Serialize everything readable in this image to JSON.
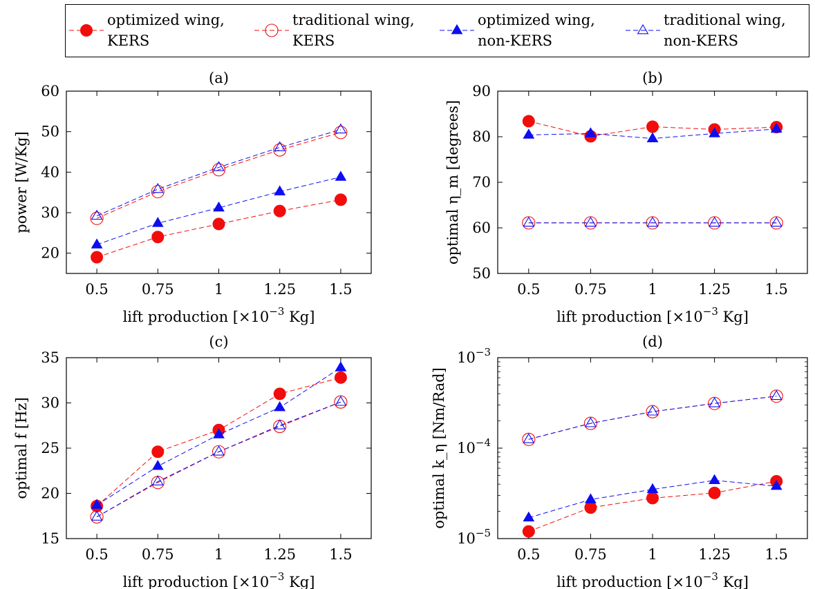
{
  "colors": {
    "red": "#f20d0d",
    "blue": "#0d0df2"
  },
  "legend": {
    "entries": [
      {
        "line1": "optimized wing,",
        "line2": "KERS",
        "color": "red",
        "marker": "filled-circle"
      },
      {
        "line1": "traditional wing,",
        "line2": "KERS",
        "color": "red",
        "marker": "open-circle"
      },
      {
        "line1": "optimized wing,",
        "line2": "non-KERS",
        "color": "blue",
        "marker": "filled-triangle"
      },
      {
        "line1": "traditional wing,",
        "line2": "non-KERS",
        "color": "blue",
        "marker": "open-triangle"
      }
    ]
  },
  "chart_data": [
    {
      "panel": "(a)",
      "type": "line",
      "ylabel": "power [W/Kg]",
      "xlabel_main": "lift production [×10",
      "xlabel_sup": "−3",
      "xlabel_end": " Kg]",
      "x": [
        0.5,
        0.75,
        1,
        1.25,
        1.5
      ],
      "xticklabels": [
        "0.5",
        "0.75",
        "1",
        "1.25",
        "1.5"
      ],
      "ylim": [
        15,
        60
      ],
      "yscale": "linear",
      "yticks": [
        20,
        30,
        40,
        50,
        60
      ],
      "yticklabels": [
        "20",
        "30",
        "40",
        "50",
        "60"
      ],
      "series": [
        {
          "name": "optimized wing, KERS",
          "values": [
            19.0,
            24.0,
            27.2,
            30.4,
            33.2
          ]
        },
        {
          "name": "traditional wing, KERS",
          "values": [
            28.6,
            35.2,
            40.6,
            45.5,
            49.8
          ]
        },
        {
          "name": "optimized wing, non-KERS",
          "values": [
            22.1,
            27.4,
            31.2,
            35.2,
            38.8
          ]
        },
        {
          "name": "traditional wing, non-KERS",
          "values": [
            29.2,
            35.8,
            41.2,
            46.1,
            50.5
          ]
        }
      ]
    },
    {
      "panel": "(b)",
      "type": "line",
      "ylabel": "optimal η_m [degrees]",
      "xlabel_main": "lift production [×10",
      "xlabel_sup": "−3",
      "xlabel_end": " Kg]",
      "x": [
        0.5,
        0.75,
        1,
        1.25,
        1.5
      ],
      "xticklabels": [
        "0.5",
        "0.75",
        "1",
        "1.25",
        "1.5"
      ],
      "ylim": [
        50,
        90
      ],
      "yscale": "linear",
      "yticks": [
        50,
        60,
        70,
        80,
        90
      ],
      "yticklabels": [
        "50",
        "60",
        "70",
        "80",
        "90"
      ],
      "series": [
        {
          "name": "optimized wing, KERS",
          "values": [
            83.4,
            80.1,
            82.2,
            81.6,
            82.1
          ]
        },
        {
          "name": "traditional wing, KERS",
          "values": [
            61.1,
            61.1,
            61.1,
            61.1,
            61.1
          ]
        },
        {
          "name": "optimized wing, non-KERS",
          "values": [
            80.4,
            80.7,
            79.6,
            80.7,
            81.7
          ]
        },
        {
          "name": "traditional wing, non-KERS",
          "values": [
            61.1,
            61.1,
            61.1,
            61.1,
            61.1
          ]
        }
      ]
    },
    {
      "panel": "(c)",
      "type": "line",
      "ylabel": "optimal f [Hz]",
      "xlabel_main": "lift production [×10",
      "xlabel_sup": "−3",
      "xlabel_end": " Kg]",
      "x": [
        0.5,
        0.75,
        1,
        1.25,
        1.5
      ],
      "xticklabels": [
        "0.5",
        "0.75",
        "1",
        "1.25",
        "1.5"
      ],
      "ylim": [
        15,
        35
      ],
      "yscale": "linear",
      "yticks": [
        15,
        20,
        25,
        30,
        35
      ],
      "yticklabels": [
        "15",
        "20",
        "25",
        "30",
        "35"
      ],
      "series": [
        {
          "name": "optimized wing, KERS",
          "values": [
            18.6,
            24.6,
            27.0,
            31.0,
            32.8
          ]
        },
        {
          "name": "traditional wing, KERS",
          "values": [
            17.4,
            21.2,
            24.6,
            27.4,
            30.1
          ]
        },
        {
          "name": "optimized wing, non-KERS",
          "values": [
            18.7,
            23.0,
            26.5,
            29.5,
            33.9
          ]
        },
        {
          "name": "traditional wing, non-KERS",
          "values": [
            17.4,
            21.3,
            24.6,
            27.5,
            30.1
          ]
        }
      ]
    },
    {
      "panel": "(d)",
      "type": "line",
      "ylabel": "optimal k_η [Nm/Rad]",
      "xlabel_main": "lift production [×10",
      "xlabel_sup": "−3",
      "xlabel_end": " Kg]",
      "x": [
        0.5,
        0.75,
        1,
        1.25,
        1.5
      ],
      "xticklabels": [
        "0.5",
        "0.75",
        "1",
        "1.25",
        "1.5"
      ],
      "ylim": [
        1e-05,
        0.001
      ],
      "yscale": "log",
      "yticks": [
        1e-05,
        0.0001,
        0.001
      ],
      "yticklabel_base": "10",
      "yticklabel_exps": [
        "−5",
        "−4",
        "−3"
      ],
      "series": [
        {
          "name": "optimized wing, KERS",
          "values": [
            1.2e-05,
            2.2e-05,
            2.8e-05,
            3.2e-05,
            4.3e-05
          ]
        },
        {
          "name": "traditional wing, KERS",
          "values": [
            0.000125,
            0.000188,
            0.000253,
            0.000312,
            0.000375
          ]
        },
        {
          "name": "optimized wing, non-KERS",
          "values": [
            1.7e-05,
            2.7e-05,
            3.5e-05,
            4.4e-05,
            3.8e-05
          ]
        },
        {
          "name": "traditional wing, non-KERS",
          "values": [
            0.000125,
            0.000188,
            0.000253,
            0.000312,
            0.000375
          ]
        }
      ]
    }
  ]
}
